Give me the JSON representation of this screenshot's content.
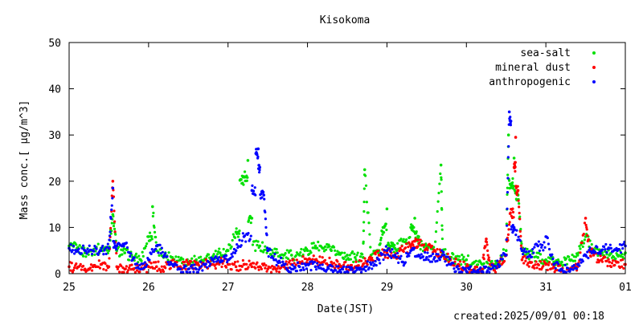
{
  "chart_data": {
    "type": "scatter",
    "title": "Kisokoma",
    "xlabel": "Date(JST)",
    "ylabel": "Mass conc.[ μg/m^3]",
    "ylim": [
      0,
      50
    ],
    "yticks": [
      "0",
      "10",
      "20",
      "30",
      "40",
      "50"
    ],
    "x_start": "25",
    "x_end": "01",
    "xticks": [
      {
        "day": 0,
        "label": "25"
      },
      {
        "day": 1,
        "label": "26"
      },
      {
        "day": 2,
        "label": "27"
      },
      {
        "day": 3,
        "label": "28"
      },
      {
        "day": 4,
        "label": "29"
      },
      {
        "day": 5,
        "label": "30"
      },
      {
        "day": 6,
        "label": "31"
      },
      {
        "day": 7,
        "label": "01"
      }
    ],
    "grid": false,
    "legend_position": "top-right",
    "footer": "created:2025/09/01 00:18",
    "series": [
      {
        "name": "sea-salt",
        "color": "#00e000",
        "points": [
          [
            0.0,
            6
          ],
          [
            0.1,
            5.5
          ],
          [
            0.2,
            4.5
          ],
          [
            0.3,
            5
          ],
          [
            0.4,
            5.5
          ],
          [
            0.5,
            5
          ],
          [
            0.55,
            12.8
          ],
          [
            0.6,
            5
          ],
          [
            0.7,
            4.5
          ],
          [
            0.8,
            3.5
          ],
          [
            0.9,
            3
          ],
          [
            1.0,
            8
          ],
          [
            1.05,
            14.5
          ],
          [
            1.1,
            5
          ],
          [
            1.2,
            4
          ],
          [
            1.3,
            3.5
          ],
          [
            1.4,
            3
          ],
          [
            1.5,
            2.5
          ],
          [
            1.6,
            3
          ],
          [
            1.7,
            3
          ],
          [
            1.8,
            3.5
          ],
          [
            1.9,
            4.5
          ],
          [
            2.0,
            5
          ],
          [
            2.1,
            9
          ],
          [
            2.15,
            20.2
          ],
          [
            2.2,
            21
          ],
          [
            2.25,
            24.5
          ],
          [
            2.3,
            12
          ],
          [
            2.4,
            6
          ],
          [
            2.5,
            5
          ],
          [
            2.6,
            4.5
          ],
          [
            2.7,
            4
          ],
          [
            2.8,
            4
          ],
          [
            2.9,
            4
          ],
          [
            3.0,
            5
          ],
          [
            3.1,
            6
          ],
          [
            3.2,
            5.5
          ],
          [
            3.3,
            5
          ],
          [
            3.4,
            4.5
          ],
          [
            3.5,
            4
          ],
          [
            3.6,
            3.5
          ],
          [
            3.7,
            3.5
          ],
          [
            3.72,
            22.5
          ],
          [
            3.8,
            4
          ],
          [
            3.9,
            5
          ],
          [
            3.95,
            10
          ],
          [
            4.0,
            14
          ],
          [
            4.05,
            6
          ],
          [
            4.1,
            5.5
          ],
          [
            4.2,
            7
          ],
          [
            4.3,
            10
          ],
          [
            4.35,
            12
          ],
          [
            4.4,
            8
          ],
          [
            4.5,
            6
          ],
          [
            4.6,
            5
          ],
          [
            4.68,
            23.5
          ],
          [
            4.7,
            4.5
          ],
          [
            4.8,
            3.5
          ],
          [
            4.9,
            3
          ],
          [
            5.0,
            3
          ],
          [
            5.1,
            2.5
          ],
          [
            5.2,
            2
          ],
          [
            5.3,
            2
          ],
          [
            5.4,
            2.5
          ],
          [
            5.5,
            5
          ],
          [
            5.53,
            30
          ],
          [
            5.57,
            19.5
          ],
          [
            5.6,
            25
          ],
          [
            5.65,
            17
          ],
          [
            5.7,
            5
          ],
          [
            5.8,
            4
          ],
          [
            5.9,
            3.5
          ],
          [
            6.0,
            3
          ],
          [
            6.1,
            2.5
          ],
          [
            6.2,
            2.5
          ],
          [
            6.3,
            3
          ],
          [
            6.4,
            4
          ],
          [
            6.5,
            8
          ],
          [
            6.6,
            5
          ],
          [
            6.7,
            4.5
          ],
          [
            6.8,
            4
          ],
          [
            6.9,
            4
          ],
          [
            7.0,
            4.5
          ]
        ]
      },
      {
        "name": "mineral dust",
        "color": "#ff0000",
        "points": [
          [
            0.0,
            1.5
          ],
          [
            0.1,
            1.2
          ],
          [
            0.2,
            1
          ],
          [
            0.3,
            1.5
          ],
          [
            0.4,
            2
          ],
          [
            0.5,
            1.5
          ],
          [
            0.55,
            20
          ],
          [
            0.6,
            1.5
          ],
          [
            0.7,
            1
          ],
          [
            0.8,
            1
          ],
          [
            0.9,
            1
          ],
          [
            1.0,
            1.5
          ],
          [
            1.1,
            1.5
          ],
          [
            1.2,
            1.5
          ],
          [
            1.3,
            2
          ],
          [
            1.4,
            1.5
          ],
          [
            1.5,
            2
          ],
          [
            1.6,
            2
          ],
          [
            1.7,
            2
          ],
          [
            1.8,
            2
          ],
          [
            1.9,
            2.5
          ],
          [
            2.0,
            2
          ],
          [
            2.1,
            1.5
          ],
          [
            2.2,
            2
          ],
          [
            2.3,
            1.5
          ],
          [
            2.4,
            1.5
          ],
          [
            2.5,
            1
          ],
          [
            2.6,
            1
          ],
          [
            2.7,
            1.5
          ],
          [
            2.8,
            2
          ],
          [
            2.9,
            2.5
          ],
          [
            3.0,
            3
          ],
          [
            3.1,
            3
          ],
          [
            3.2,
            2.5
          ],
          [
            3.3,
            2.5
          ],
          [
            3.4,
            2
          ],
          [
            3.5,
            1.5
          ],
          [
            3.6,
            1.5
          ],
          [
            3.7,
            2
          ],
          [
            3.8,
            3
          ],
          [
            3.9,
            4
          ],
          [
            4.0,
            4.5
          ],
          [
            4.1,
            4
          ],
          [
            4.2,
            5
          ],
          [
            4.3,
            6
          ],
          [
            4.35,
            7
          ],
          [
            4.4,
            6.5
          ],
          [
            4.5,
            5.5
          ],
          [
            4.6,
            5
          ],
          [
            4.7,
            4
          ],
          [
            4.8,
            3
          ],
          [
            4.9,
            2
          ],
          [
            5.0,
            1.5
          ],
          [
            5.1,
            1
          ],
          [
            5.2,
            1
          ],
          [
            5.25,
            7.5
          ],
          [
            5.3,
            1
          ],
          [
            5.4,
            1.5
          ],
          [
            5.5,
            4
          ],
          [
            5.55,
            13
          ],
          [
            5.6,
            23
          ],
          [
            5.62,
            29.5
          ],
          [
            5.65,
            18
          ],
          [
            5.7,
            3
          ],
          [
            5.8,
            2.5
          ],
          [
            5.9,
            2
          ],
          [
            6.0,
            2
          ],
          [
            6.1,
            1.5
          ],
          [
            6.2,
            1
          ],
          [
            6.3,
            1
          ],
          [
            6.4,
            1.5
          ],
          [
            6.5,
            12
          ],
          [
            6.55,
            5
          ],
          [
            6.6,
            4
          ],
          [
            6.7,
            3
          ],
          [
            6.8,
            2.5
          ],
          [
            6.9,
            2.5
          ],
          [
            7.0,
            2
          ]
        ]
      },
      {
        "name": "anthropogenic",
        "color": "#0000ff",
        "points": [
          [
            0.0,
            5.5
          ],
          [
            0.1,
            5
          ],
          [
            0.2,
            5
          ],
          [
            0.3,
            5
          ],
          [
            0.4,
            5
          ],
          [
            0.5,
            5.5
          ],
          [
            0.55,
            18.5
          ],
          [
            0.6,
            6
          ],
          [
            0.7,
            6.5
          ],
          [
            0.8,
            3
          ],
          [
            0.9,
            1
          ],
          [
            1.0,
            3
          ],
          [
            1.1,
            6
          ],
          [
            1.2,
            4
          ],
          [
            1.3,
            2
          ],
          [
            1.4,
            1
          ],
          [
            1.5,
            1
          ],
          [
            1.6,
            1
          ],
          [
            1.7,
            2
          ],
          [
            1.8,
            3
          ],
          [
            1.9,
            2.5
          ],
          [
            2.0,
            3
          ],
          [
            2.1,
            5
          ],
          [
            2.2,
            8
          ],
          [
            2.3,
            18
          ],
          [
            2.35,
            26
          ],
          [
            2.38,
            27
          ],
          [
            2.4,
            23
          ],
          [
            2.45,
            17
          ],
          [
            2.5,
            5
          ],
          [
            2.6,
            3
          ],
          [
            2.7,
            2
          ],
          [
            2.8,
            1
          ],
          [
            2.9,
            1.5
          ],
          [
            3.0,
            2
          ],
          [
            3.1,
            1.5
          ],
          [
            3.2,
            1
          ],
          [
            3.3,
            0.8
          ],
          [
            3.4,
            0.5
          ],
          [
            3.5,
            0.5
          ],
          [
            3.6,
            0.5
          ],
          [
            3.7,
            1
          ],
          [
            3.8,
            2
          ],
          [
            3.9,
            3
          ],
          [
            4.0,
            5
          ],
          [
            4.1,
            4
          ],
          [
            4.2,
            2.5
          ],
          [
            4.3,
            5
          ],
          [
            4.4,
            4
          ],
          [
            4.5,
            3.5
          ],
          [
            4.6,
            3.5
          ],
          [
            4.7,
            4
          ],
          [
            4.8,
            2
          ],
          [
            4.9,
            1
          ],
          [
            5.0,
            0.5
          ],
          [
            5.1,
            0.5
          ],
          [
            5.2,
            0.5
          ],
          [
            5.3,
            1
          ],
          [
            5.4,
            2
          ],
          [
            5.5,
            4
          ],
          [
            5.54,
            35
          ],
          [
            5.56,
            33
          ],
          [
            5.6,
            10
          ],
          [
            5.7,
            5
          ],
          [
            5.8,
            4
          ],
          [
            5.9,
            6
          ],
          [
            6.0,
            8
          ],
          [
            6.1,
            2
          ],
          [
            6.2,
            1
          ],
          [
            6.3,
            0.5
          ],
          [
            6.4,
            2
          ],
          [
            6.5,
            4
          ],
          [
            6.6,
            5
          ],
          [
            6.7,
            5
          ],
          [
            6.8,
            5.5
          ],
          [
            6.9,
            5
          ],
          [
            7.0,
            6
          ]
        ]
      }
    ]
  }
}
